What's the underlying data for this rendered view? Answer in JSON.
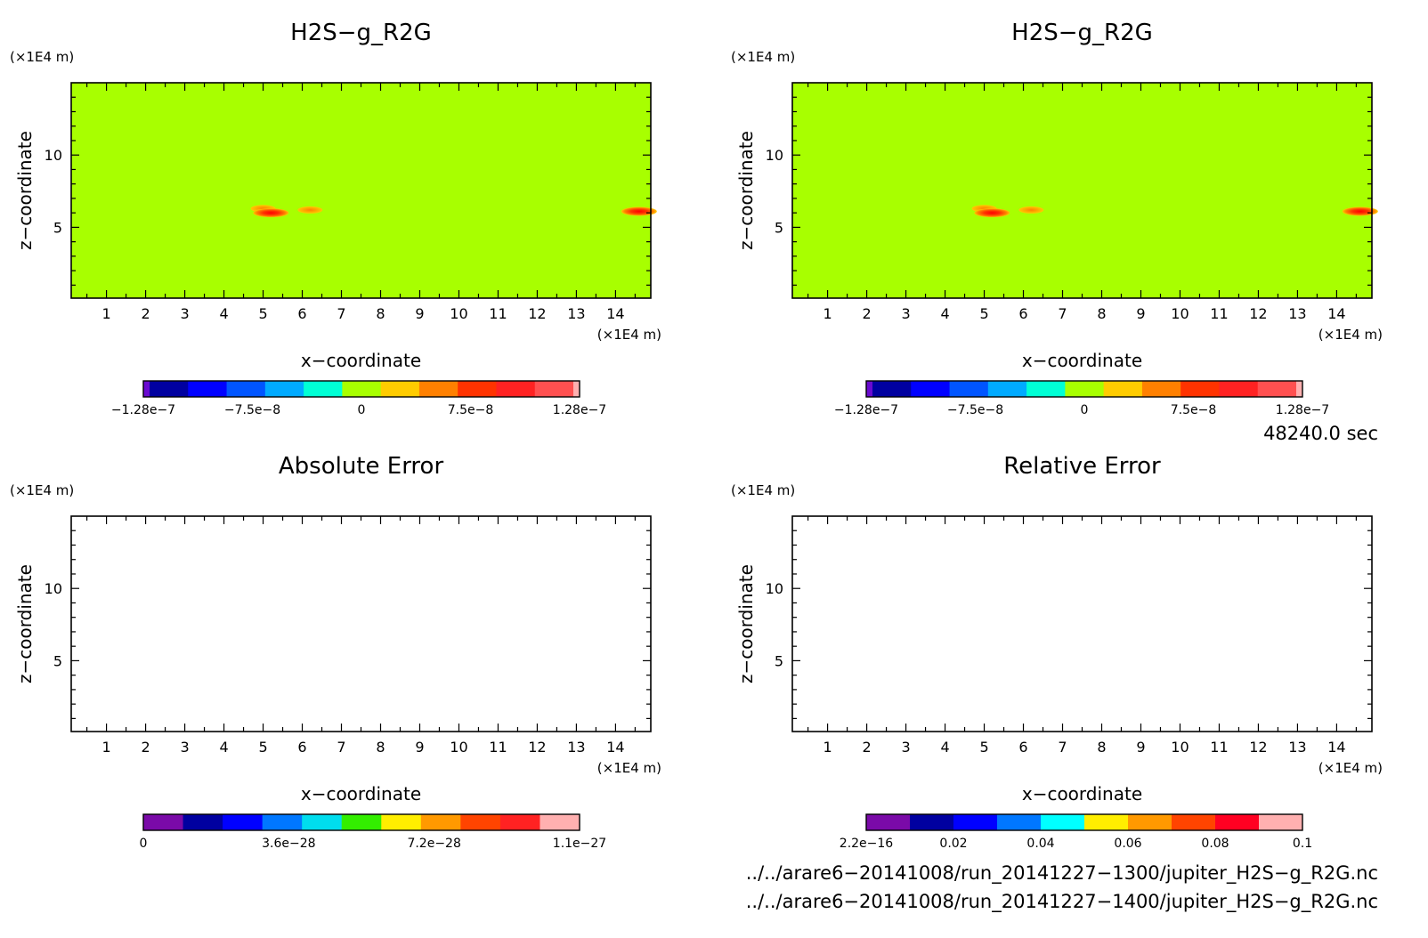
{
  "chart_data": [
    {
      "type": "heatmap",
      "title": "H2S−g_R2G",
      "xlabel": "x−coordinate",
      "ylabel": "z−coordinate",
      "x_unit": "(×1E4 m)",
      "y_unit": "(×1E4 m)",
      "xlim": [
        0.1,
        14.9
      ],
      "ylim": [
        0.1,
        15
      ],
      "xticks": [
        "1",
        "2",
        "3",
        "4",
        "5",
        "6",
        "7",
        "8",
        "9",
        "10",
        "11",
        "12",
        "13",
        "14"
      ],
      "yticks": [
        "5",
        "10"
      ],
      "background_color": "#a8ff00",
      "blobs": [
        {
          "x": 5.0,
          "z": 6.3,
          "level": 8e-08
        },
        {
          "x": 5.2,
          "z": 6.0,
          "level": 1.28e-07
        },
        {
          "x": 6.2,
          "z": 6.2,
          "level": 6e-08
        },
        {
          "x": 14.6,
          "z": 6.1,
          "level": 1.28e-07
        }
      ],
      "colorbar": {
        "colors": [
          "#6a0ad0",
          "#0000a0",
          "#0000ff",
          "#0055ff",
          "#00aaff",
          "#00ffd5",
          "#a8ff00",
          "#ffcc00",
          "#ff8000",
          "#ff3300",
          "#ff2222",
          "#ff5050",
          "#ffb0b0"
        ],
        "labels": [
          "−1.28e−7",
          "−7.5e−8",
          "0",
          "7.5e−8",
          "1.28e−7"
        ]
      }
    },
    {
      "type": "heatmap",
      "title": "H2S−g_R2G",
      "xlabel": "x−coordinate",
      "ylabel": "z−coordinate",
      "x_unit": "(×1E4 m)",
      "y_unit": "(×1E4 m)",
      "xlim": [
        0.1,
        14.9
      ],
      "ylim": [
        0.1,
        15
      ],
      "xticks": [
        "1",
        "2",
        "3",
        "4",
        "5",
        "6",
        "7",
        "8",
        "9",
        "10",
        "11",
        "12",
        "13",
        "14"
      ],
      "yticks": [
        "5",
        "10"
      ],
      "background_color": "#a8ff00",
      "blobs": [
        {
          "x": 5.0,
          "z": 6.3,
          "level": 8e-08
        },
        {
          "x": 5.2,
          "z": 6.0,
          "level": 1.28e-07
        },
        {
          "x": 6.2,
          "z": 6.2,
          "level": 6e-08
        },
        {
          "x": 14.6,
          "z": 6.1,
          "level": 1.28e-07
        }
      ],
      "colorbar": {
        "colors": [
          "#6a0ad0",
          "#0000a0",
          "#0000ff",
          "#0055ff",
          "#00aaff",
          "#00ffd5",
          "#a8ff00",
          "#ffcc00",
          "#ff8000",
          "#ff3300",
          "#ff2222",
          "#ff5050",
          "#ffb0b0"
        ],
        "labels": [
          "−1.28e−7",
          "−7.5e−8",
          "0",
          "7.5e−8",
          "1.28e−7"
        ]
      }
    },
    {
      "type": "heatmap",
      "title": "Absolute Error",
      "xlabel": "x−coordinate",
      "ylabel": "z−coordinate",
      "x_unit": "(×1E4 m)",
      "y_unit": "(×1E4 m)",
      "xlim": [
        0.1,
        14.9
      ],
      "ylim": [
        0.1,
        15
      ],
      "xticks": [
        "1",
        "2",
        "3",
        "4",
        "5",
        "6",
        "7",
        "8",
        "9",
        "10",
        "11",
        "12",
        "13",
        "14"
      ],
      "yticks": [
        "5",
        "10"
      ],
      "background_color": "#ffffff",
      "blobs": [],
      "colorbar": {
        "colors": [
          "#7a0aa8",
          "#0000a0",
          "#0000ff",
          "#0077ff",
          "#00ddee",
          "#33ee00",
          "#ffee00",
          "#ff9900",
          "#ff4400",
          "#ff2222",
          "#ffb0b0"
        ],
        "labels": [
          "0",
          "3.6e−28",
          "7.2e−28",
          "1.1e−27"
        ]
      }
    },
    {
      "type": "heatmap",
      "title": "Relative Error",
      "xlabel": "x−coordinate",
      "ylabel": "z−coordinate",
      "x_unit": "(×1E4 m)",
      "y_unit": "(×1E4 m)",
      "xlim": [
        0.1,
        14.9
      ],
      "ylim": [
        0.1,
        15
      ],
      "xticks": [
        "1",
        "2",
        "3",
        "4",
        "5",
        "6",
        "7",
        "8",
        "9",
        "10",
        "11",
        "12",
        "13",
        "14"
      ],
      "yticks": [
        "5",
        "10"
      ],
      "background_color": "#ffffff",
      "blobs": [],
      "colorbar": {
        "colors": [
          "#7a0aa8",
          "#0000a0",
          "#0000ff",
          "#0077ff",
          "#00ffff",
          "#ffee00",
          "#ff9900",
          "#ff4400",
          "#ff0022",
          "#ffb0b0"
        ],
        "labels": [
          "2.2e−16",
          "0.02",
          "0.04",
          "0.06",
          "0.08",
          "0.1"
        ]
      }
    }
  ],
  "info": {
    "time": "48240.0 sec",
    "file1": "../../arare6−20141008/run_20141227−1300/jupiter_H2S−g_R2G.nc",
    "file2": "../../arare6−20141008/run_20141227−1400/jupiter_H2S−g_R2G.nc"
  }
}
